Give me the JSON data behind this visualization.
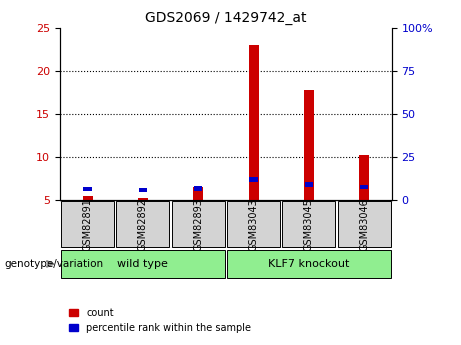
{
  "title": "GDS2069 / 1429742_at",
  "samples": [
    "GSM82891",
    "GSM82892",
    "GSM82893",
    "GSM83043",
    "GSM83045",
    "GSM83046"
  ],
  "groups": [
    "wild type",
    "wild type",
    "wild type",
    "KLF7 knockout",
    "KLF7 knockout",
    "KLF7 knockout"
  ],
  "group_labels": [
    "wild type",
    "KLF7 knockout"
  ],
  "group_colors": [
    "#90EE90",
    "#90EE90"
  ],
  "red_values": [
    5.5,
    5.2,
    6.5,
    23.0,
    17.8,
    10.2
  ],
  "blue_values": [
    6.5,
    5.8,
    6.7,
    12.0,
    9.0,
    7.5
  ],
  "ylim_left": [
    5,
    25
  ],
  "ylim_right": [
    0,
    100
  ],
  "yticks_left": [
    5,
    10,
    15,
    20,
    25
  ],
  "yticks_right": [
    0,
    25,
    50,
    75,
    100
  ],
  "ytick_labels_right": [
    "0",
    "25",
    "50",
    "75",
    "100%"
  ],
  "left_color": "#cc0000",
  "right_color": "#0000cc",
  "bar_width": 0.35,
  "legend_count": "count",
  "legend_percentile": "percentile rank within the sample",
  "group_label_text": "genotype/variation",
  "bg_plot": "#ffffff",
  "bg_label_area": "#d3d3d3",
  "bg_group_area": "#90EE90",
  "grid_style": "dotted"
}
